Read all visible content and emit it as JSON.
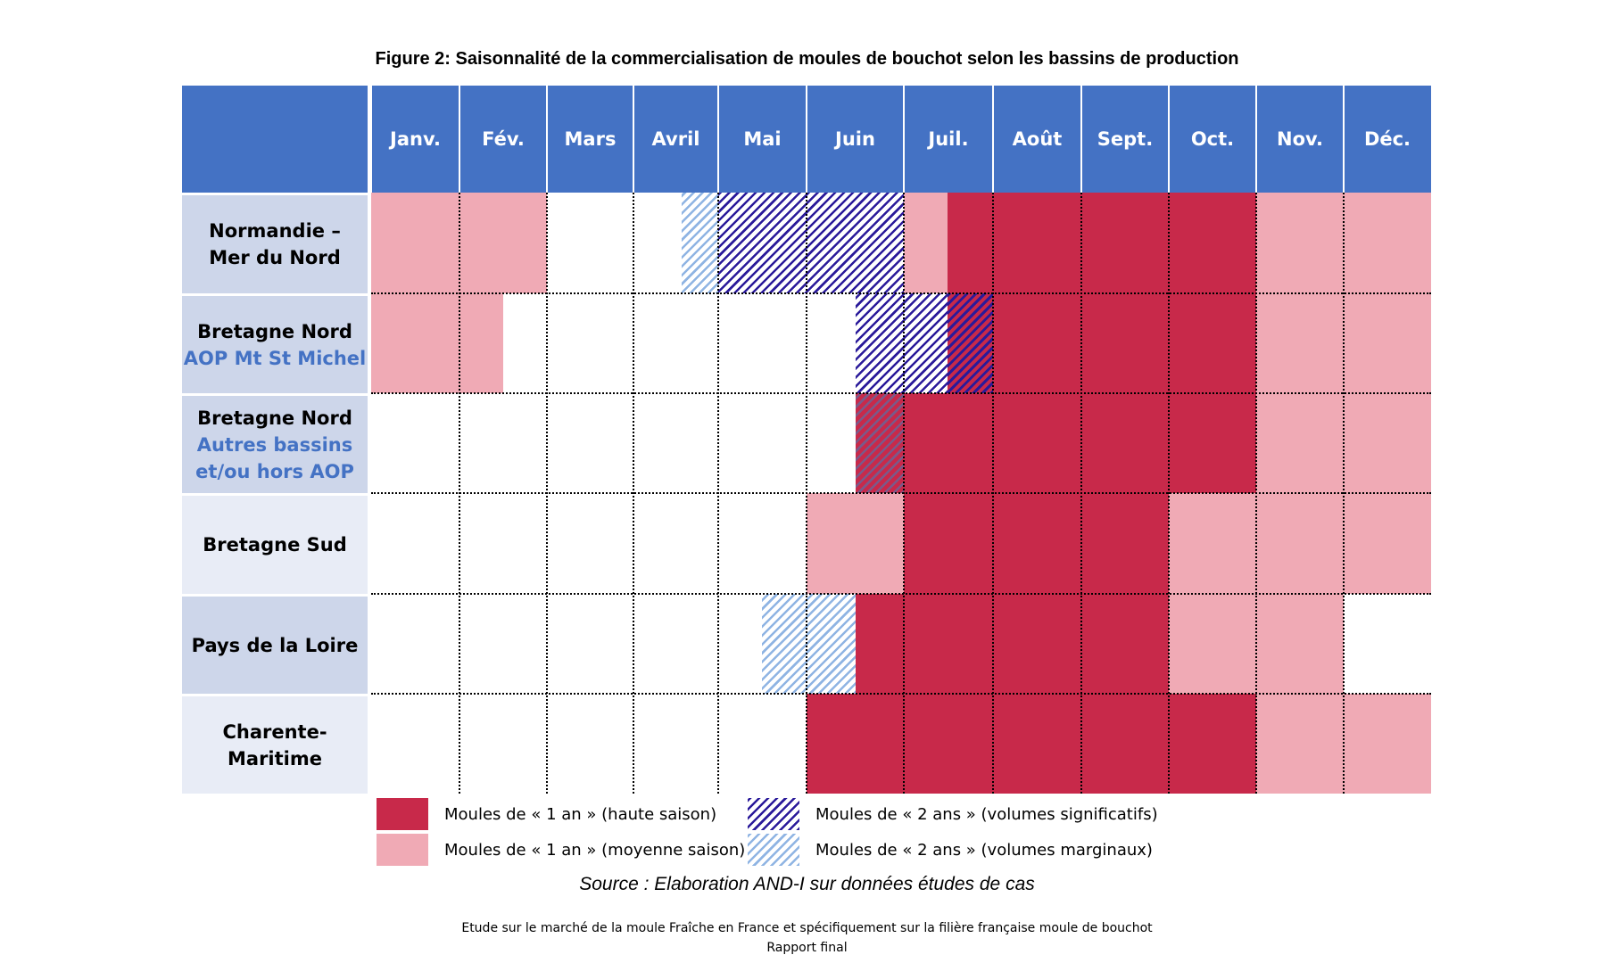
{
  "title": "Figure 2: Saisonnalité de la commercialisation de moules de bouchot selon les bassins de production",
  "months": [
    "Janv.",
    "Fév.",
    "Mars",
    "Avril",
    "Mai",
    "Juin",
    "Juil.",
    "Août",
    "Sept.",
    "Oct.",
    "Nov.",
    "Déc."
  ],
  "rows": [
    {
      "label": "Normandie –\nMer du Nord",
      "sub": ""
    },
    {
      "label": "Bretagne Nord",
      "sub": "AOP Mt St Michel"
    },
    {
      "label": "Bretagne Nord",
      "sub": "Autres bassins\net/ou hors AOP"
    },
    {
      "label": "Bretagne Sud",
      "sub": ""
    },
    {
      "label": "Pays de la Loire",
      "sub": ""
    },
    {
      "label": "Charente-\nMaritime",
      "sub": ""
    }
  ],
  "legend": {
    "high": "Moules de « 1 an » (haute saison)",
    "mid": "Moules de « 1 an » (moyenne saison)",
    "sig": "Moules de « 2 ans » (volumes significatifs)",
    "marg": "Moules de « 2 ans » (volumes marginaux)"
  },
  "colors": {
    "header": "#4472c4",
    "high": "#c8294a",
    "mid": "#f0aab5",
    "sig": "#2a1a9a",
    "marg": "#8fb4e3"
  },
  "source": "Source : Elaboration AND-I sur données études de cas",
  "footer": {
    "line1": "Etude sur le marché de la moule Fraîche en France et spécifiquement sur la filière française moule de bouchot",
    "line2": "Rapport final"
  }
}
